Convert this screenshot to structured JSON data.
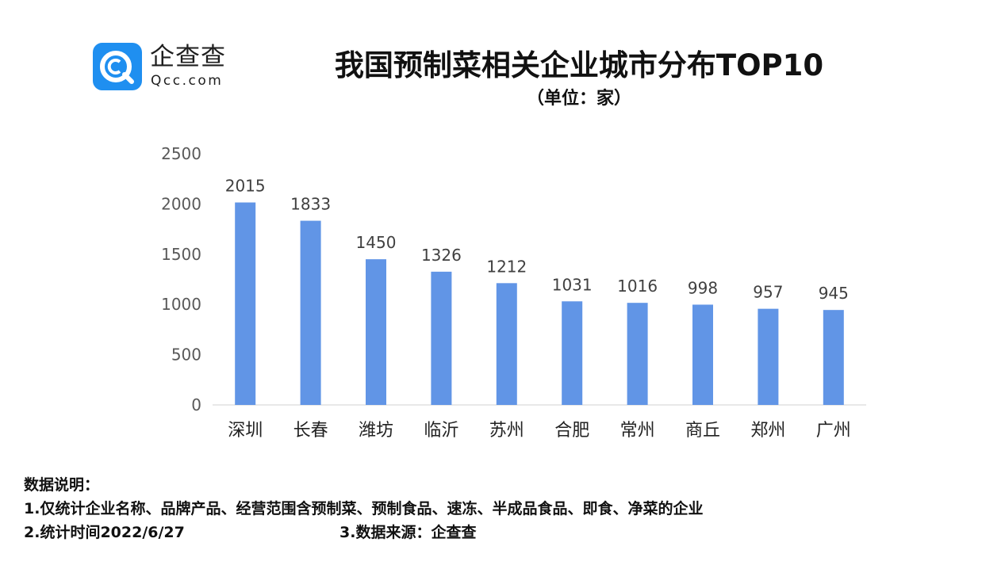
{
  "logo": {
    "name_cn": "企查查",
    "name_en": "Qcc.com",
    "icon": "qcc-logo-icon",
    "color": "#1f8ff0"
  },
  "header": {
    "title": "我国预制菜相关企业城市分布TOP10",
    "subtitle": "（单位：家）"
  },
  "chart_data": {
    "type": "bar",
    "categories": [
      "深圳",
      "长春",
      "潍坊",
      "临沂",
      "苏州",
      "合肥",
      "常州",
      "商丘",
      "郑州",
      "广州"
    ],
    "values": [
      2015,
      1833,
      1450,
      1326,
      1212,
      1031,
      1016,
      998,
      957,
      945
    ],
    "ylim": [
      0,
      2500
    ],
    "yticks": [
      0,
      500,
      1000,
      1500,
      2000,
      2500
    ],
    "grid": false,
    "legend": "none",
    "bar_color": "#6195e6"
  },
  "notes": {
    "heading": "数据说明：",
    "line1": "1.仅统计企业名称、品牌产品、经营范围含预制菜、预制食品、速冻、半成品食品、即食、净菜的企业",
    "line2": "2.统计时间2022/6/27",
    "line3": "3.数据来源：企查查"
  }
}
